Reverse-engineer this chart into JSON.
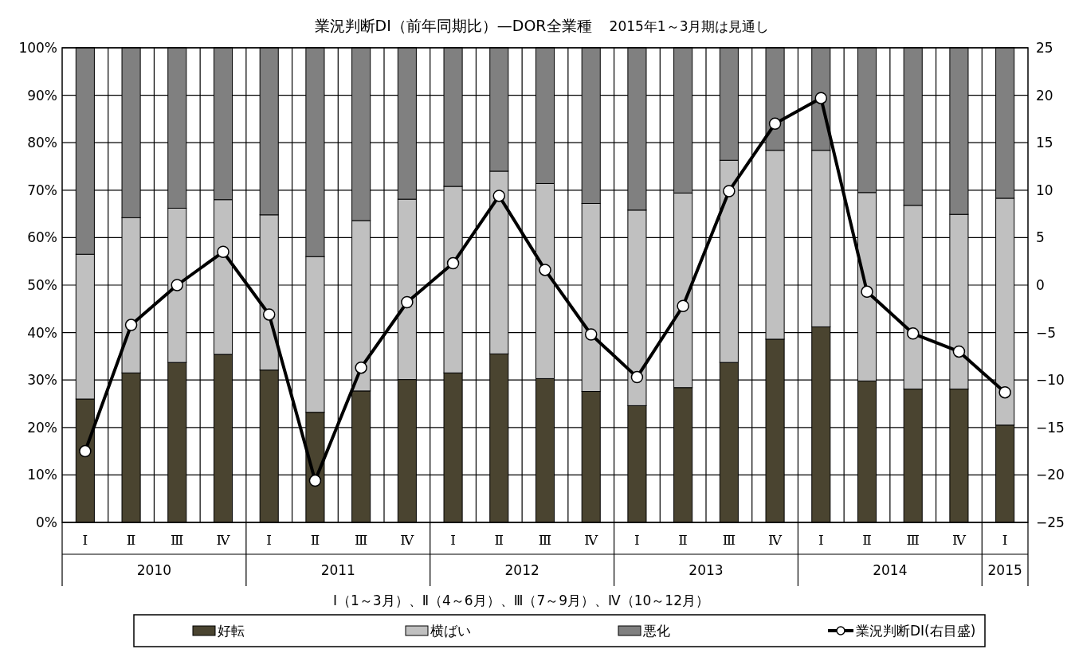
{
  "chart_data": {
    "type": "bar",
    "stacked": true,
    "title": "業況判断DI（前年同期比）—DOR全業種",
    "subtitle": "2015年1～3月期は見通し",
    "xlabel": "Ⅰ（1～3月）、Ⅱ（4～6月）、Ⅲ（7～9月）、Ⅳ（10～12月）",
    "categories": [
      "Ⅰ",
      "Ⅱ",
      "Ⅲ",
      "Ⅳ",
      "Ⅰ",
      "Ⅱ",
      "Ⅲ",
      "Ⅳ",
      "Ⅰ",
      "Ⅱ",
      "Ⅲ",
      "Ⅳ",
      "Ⅰ",
      "Ⅱ",
      "Ⅲ",
      "Ⅳ",
      "Ⅰ",
      "Ⅱ",
      "Ⅲ",
      "Ⅳ",
      "Ⅰ"
    ],
    "annotations": [
      "2010",
      "2011",
      "2012",
      "2013",
      "2014",
      "2015"
    ],
    "series": [
      {
        "name": "好転",
        "color": "#4a4430",
        "values": [
          26,
          31.5,
          33.7,
          35.4,
          32.1,
          23.2,
          27.7,
          30.1,
          31.5,
          35.5,
          30.3,
          27.6,
          24.6,
          28.4,
          33.7,
          38.6,
          41.2,
          29.8,
          28.1,
          28.1,
          20.5
        ]
      },
      {
        "name": "横ばい",
        "color": "#c0c0c0",
        "values": [
          30.5,
          32.7,
          32.5,
          32.6,
          32.7,
          32.8,
          35.9,
          38,
          39.3,
          38.5,
          41.1,
          39.6,
          41.2,
          41,
          42.6,
          39.8,
          37.2,
          39.7,
          38.7,
          36.8,
          47.8
        ]
      },
      {
        "name": "悪化",
        "color": "#808080",
        "values": [
          43.5,
          35.8,
          33.8,
          32,
          35.2,
          44,
          36.4,
          31.9,
          29.2,
          26,
          28.6,
          32.8,
          34.2,
          30.6,
          23.7,
          21.6,
          21.6,
          30.5,
          33.2,
          35.1,
          31.7
        ]
      },
      {
        "name": "業況判断DI(右目盛)",
        "type": "line",
        "axis": "y2",
        "color": "#000000",
        "values": [
          -17.5,
          -4.2,
          0,
          3.5,
          -3.1,
          -20.6,
          -8.7,
          -1.8,
          2.3,
          9.4,
          1.6,
          -5.2,
          -9.7,
          -2.2,
          9.9,
          17,
          19.7,
          -0.7,
          -5.1,
          -7,
          -11.3
        ]
      }
    ],
    "ylim": [
      0,
      100
    ],
    "yticks": [
      {
        "value": 0,
        "label": "0%"
      },
      {
        "value": 10,
        "label": "10%"
      },
      {
        "value": 20,
        "label": "20%"
      },
      {
        "value": 30,
        "label": "30%"
      },
      {
        "value": 40,
        "label": "40%"
      },
      {
        "value": 50,
        "label": "50%"
      },
      {
        "value": 60,
        "label": "60%"
      },
      {
        "value": 70,
        "label": "70%"
      },
      {
        "value": 80,
        "label": "80%"
      },
      {
        "value": 90,
        "label": "90%"
      },
      {
        "value": 100,
        "label": "100%"
      }
    ],
    "y2lim": [
      -25,
      25
    ],
    "y2ticks": [
      -25,
      -20,
      -15,
      -10,
      -5,
      0,
      5,
      10,
      15,
      20,
      25
    ],
    "grid": true,
    "legend": "bottom",
    "marker": "circle",
    "line_style": "solid"
  }
}
